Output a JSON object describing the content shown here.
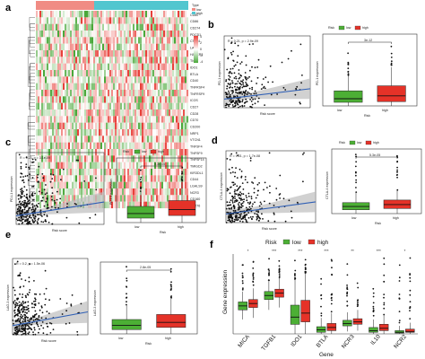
{
  "colors": {
    "low": "#4caf35",
    "high": "#e53228",
    "heat_low": "#4aa83a",
    "heat_high": "#e8403a",
    "heat_mid": "#ffffff",
    "reg_line": "#2f5fb5",
    "ci": "#bdbdbd"
  },
  "panels": {
    "a": {
      "label": "a",
      "type_label": "Type",
      "legend": [
        "low",
        "high"
      ],
      "color_scale": [
        "4",
        "2",
        "0",
        "-2",
        "-4"
      ],
      "genes": [
        "CD80",
        "CD86",
        "CD274",
        "PDCD1",
        "CTLA4",
        "LAG3",
        "HAVCR2",
        "TIGIT",
        "IDO1",
        "BTLA",
        "CD40",
        "TNFRSF4",
        "TNFRSF9",
        "ICOS",
        "CD27",
        "CD28",
        "CD70",
        "CD200",
        "NRP1",
        "VTCN1",
        "TNFSF4",
        "TNFSF9",
        "TNFSF14",
        "TMIGD2",
        "KIR3DL1",
        "CD44",
        "LGALS9",
        "NCR3",
        "CD160",
        "CD276"
      ]
    },
    "b": {
      "label": "b",
      "stat": "R = 0.21, p = 2.9e-09",
      "ylab": "PD-1 expression",
      "xlab": "Risk score",
      "box_pval": "3e-12",
      "box_ylab": "PD-1 expression",
      "box_xlab": "Risk"
    },
    "c": {
      "label": "c",
      "stat": "R = 0.23, p = 3.1e-09",
      "ylab": "PD-L1 expression",
      "xlab": "Risk score",
      "box_pval": "3.3e-05",
      "box_ylab": "PD-L1 expression",
      "box_xlab": "Risk"
    },
    "d": {
      "label": "d",
      "stat": "R = 0.21, p = 1.7e-08",
      "ylab": "CTLA-4 expression",
      "xlab": "Risk score",
      "box_pval": "5.3e-05",
      "box_ylab": "CTLA-4 expression",
      "box_xlab": "Risk"
    },
    "e": {
      "label": "e",
      "stat": "R = 0.2, p = 1.5e-06",
      "ylab": "LAG-3 expression",
      "xlab": "Risk score",
      "box_pval": "2.8e-05",
      "box_ylab": "LAG-3 expression",
      "box_xlab": "Risk"
    },
    "f": {
      "label": "f",
      "legend_title": "Risk",
      "legend": [
        "low",
        "high"
      ],
      "ylab": "Gene expression",
      "xlab": "Gene"
    }
  },
  "chart_data": [
    {
      "panel": "b",
      "type": "scatter",
      "xlabel": "Risk score",
      "ylabel": "PD-1 expression",
      "annotation": "R = 0.21, p = 2.9e-09",
      "xlim": [
        0,
        12
      ],
      "ylim": [
        0,
        10
      ]
    },
    {
      "panel": "b",
      "type": "box",
      "categories": [
        "low",
        "high"
      ],
      "xlabel": "Risk",
      "ylabel": "PD-1 expression",
      "pvalue": "3e-12",
      "ylim": [
        0,
        10
      ],
      "series": [
        {
          "name": "low",
          "q1": 0.5,
          "median": 1.0,
          "q3": 2.1,
          "whisker_low": 0,
          "whisker_high": 4.2
        },
        {
          "name": "high",
          "q1": 0.6,
          "median": 1.4,
          "q3": 2.8,
          "whisker_low": 0,
          "whisker_high": 5.4
        }
      ]
    },
    {
      "panel": "c",
      "type": "scatter",
      "xlabel": "Risk score",
      "ylabel": "PD-L1 expression",
      "annotation": "R = 0.23, p = 3.1e-09",
      "xlim": [
        0,
        12
      ],
      "ylim": [
        0,
        10
      ]
    },
    {
      "panel": "c",
      "type": "box",
      "categories": [
        "low",
        "high"
      ],
      "xlabel": "Risk",
      "ylabel": "PD-L1 expression",
      "pvalue": "3.3e-05",
      "ylim": [
        0,
        10
      ],
      "series": [
        {
          "name": "low",
          "q1": 0.7,
          "median": 1.4,
          "q3": 2.5,
          "whisker_low": 0,
          "whisker_high": 4.8
        },
        {
          "name": "high",
          "q1": 1.1,
          "median": 2.0,
          "q3": 3.4,
          "whisker_low": 0,
          "whisker_high": 6.4
        }
      ]
    },
    {
      "panel": "d",
      "type": "scatter",
      "xlabel": "Risk score",
      "ylabel": "CTLA-4 expression",
      "annotation": "R = 0.21, p = 1.7e-08",
      "xlim": [
        0,
        12
      ],
      "ylim": [
        0,
        10
      ]
    },
    {
      "panel": "d",
      "type": "box",
      "categories": [
        "low",
        "high"
      ],
      "xlabel": "Risk",
      "ylabel": "CTLA-4 expression",
      "pvalue": "5.3e-05",
      "ylim": [
        0,
        10
      ],
      "series": [
        {
          "name": "low",
          "q1": 0.6,
          "median": 1.1,
          "q3": 1.7,
          "whisker_low": 0,
          "whisker_high": 3.2
        },
        {
          "name": "high",
          "q1": 0.8,
          "median": 1.4,
          "q3": 2.1,
          "whisker_low": 0,
          "whisker_high": 3.6
        }
      ]
    },
    {
      "panel": "e",
      "type": "scatter",
      "xlabel": "Risk score",
      "ylabel": "LAG-3 expression",
      "annotation": "R = 0.2, p = 1.5e-06",
      "xlim": [
        0,
        12
      ],
      "ylim": [
        0,
        10
      ]
    },
    {
      "panel": "e",
      "type": "box",
      "categories": [
        "low",
        "high"
      ],
      "xlabel": "Risk",
      "ylabel": "LAG-3 expression",
      "pvalue": "2.8e-05",
      "ylim": [
        0,
        10
      ],
      "series": [
        {
          "name": "low",
          "q1": 0.6,
          "median": 1.2,
          "q3": 2.0,
          "whisker_low": 0,
          "whisker_high": 4.0
        },
        {
          "name": "high",
          "q1": 0.9,
          "median": 1.6,
          "q3": 2.7,
          "whisker_low": 0,
          "whisker_high": 5.0
        }
      ]
    },
    {
      "panel": "f",
      "type": "box",
      "xlabel": "Gene",
      "ylabel": "Gene expression",
      "ylim": [
        0,
        10
      ],
      "categories": [
        "MICA",
        "TGFB1",
        "IDO1",
        "BTLA",
        "NCR3",
        "IL10",
        "NCR2"
      ],
      "significance": [
        "*",
        "***",
        "***",
        "***",
        "**",
        "***",
        "*"
      ],
      "series": [
        {
          "name": "low",
          "boxes": [
            {
              "q1": 3.0,
              "median": 3.5,
              "q3": 4.0,
              "whisker_low": 1.8,
              "whisker_high": 5.3
            },
            {
              "q1": 4.3,
              "median": 4.8,
              "q3": 5.3,
              "whisker_low": 3.0,
              "whisker_high": 6.7
            },
            {
              "q1": 1.2,
              "median": 2.1,
              "q3": 3.6,
              "whisker_low": 0,
              "whisker_high": 6.8
            },
            {
              "q1": 0.2,
              "median": 0.5,
              "q3": 0.9,
              "whisker_low": 0,
              "whisker_high": 2.0
            },
            {
              "q1": 1.0,
              "median": 1.3,
              "q3": 1.7,
              "whisker_low": 0.3,
              "whisker_high": 2.7
            },
            {
              "q1": 0.2,
              "median": 0.4,
              "q3": 0.8,
              "whisker_low": 0,
              "whisker_high": 1.8
            },
            {
              "q1": 0.1,
              "median": 0.2,
              "q3": 0.4,
              "whisker_low": 0,
              "whisker_high": 1.0
            }
          ]
        },
        {
          "name": "high",
          "boxes": [
            {
              "q1": 3.3,
              "median": 3.8,
              "q3": 4.3,
              "whisker_low": 2.0,
              "whisker_high": 5.7
            },
            {
              "q1": 4.6,
              "median": 5.1,
              "q3": 5.6,
              "whisker_low": 3.3,
              "whisker_high": 7.0
            },
            {
              "q1": 1.5,
              "median": 2.6,
              "q3": 4.2,
              "whisker_low": 0,
              "whisker_high": 7.6
            },
            {
              "q1": 0.4,
              "median": 0.8,
              "q3": 1.3,
              "whisker_low": 0,
              "whisker_high": 2.6
            },
            {
              "q1": 1.2,
              "median": 1.5,
              "q3": 1.9,
              "whisker_low": 0.4,
              "whisker_high": 3.0
            },
            {
              "q1": 0.4,
              "median": 0.7,
              "q3": 1.2,
              "whisker_low": 0,
              "whisker_high": 2.4
            },
            {
              "q1": 0.2,
              "median": 0.3,
              "q3": 0.6,
              "whisker_low": 0,
              "whisker_high": 1.4
            }
          ]
        }
      ]
    }
  ]
}
